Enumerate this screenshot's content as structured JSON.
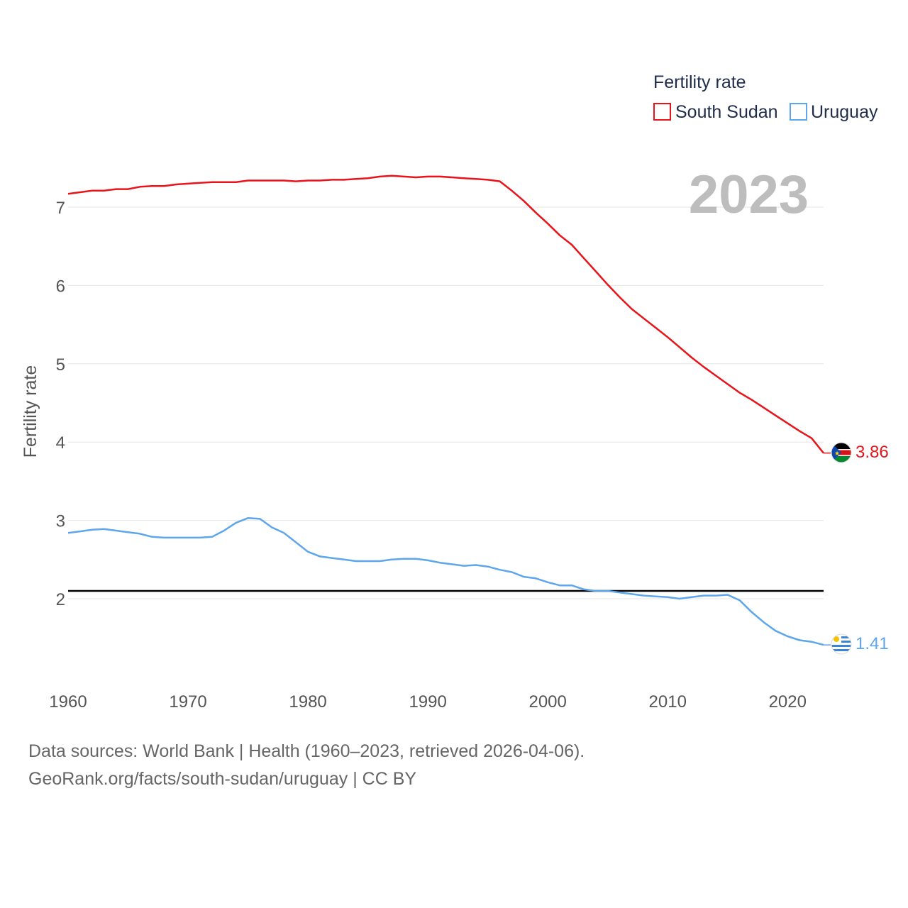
{
  "chart_data": {
    "type": "line",
    "title": "",
    "legend_title": "Fertility rate",
    "ylabel": "Fertility rate",
    "xlabel": "",
    "year_label": "2023",
    "xlim": [
      1960,
      2023
    ],
    "ylim": [
      1.0,
      7.6
    ],
    "x_ticks": [
      1960,
      1970,
      1980,
      1990,
      2000,
      2010,
      2020
    ],
    "y_ticks": [
      2,
      3,
      4,
      5,
      6,
      7
    ],
    "reference_line": {
      "y": 2.1,
      "color": "#000000"
    },
    "legend_position": "top-right",
    "x": [
      1960,
      1961,
      1962,
      1963,
      1964,
      1965,
      1966,
      1967,
      1968,
      1969,
      1970,
      1971,
      1972,
      1973,
      1974,
      1975,
      1976,
      1977,
      1978,
      1979,
      1980,
      1981,
      1982,
      1983,
      1984,
      1985,
      1986,
      1987,
      1988,
      1989,
      1990,
      1991,
      1992,
      1993,
      1994,
      1995,
      1996,
      1997,
      1998,
      1999,
      2000,
      2001,
      2002,
      2003,
      2004,
      2005,
      2006,
      2007,
      2008,
      2009,
      2010,
      2011,
      2012,
      2013,
      2014,
      2015,
      2016,
      2017,
      2018,
      2019,
      2020,
      2021,
      2022,
      2023
    ],
    "series": [
      {
        "name": "South Sudan",
        "color": "#e8141a",
        "end_label": "3.86",
        "values": [
          7.17,
          7.19,
          7.21,
          7.21,
          7.23,
          7.23,
          7.26,
          7.27,
          7.27,
          7.29,
          7.3,
          7.31,
          7.32,
          7.32,
          7.32,
          7.34,
          7.34,
          7.34,
          7.34,
          7.33,
          7.34,
          7.34,
          7.35,
          7.35,
          7.36,
          7.37,
          7.39,
          7.4,
          7.39,
          7.38,
          7.39,
          7.39,
          7.38,
          7.37,
          7.36,
          7.35,
          7.33,
          7.21,
          7.08,
          6.93,
          6.79,
          6.64,
          6.52,
          6.35,
          6.18,
          6.01,
          5.85,
          5.7,
          5.58,
          5.46,
          5.34,
          5.21,
          5.08,
          4.96,
          4.85,
          4.74,
          4.63,
          4.54,
          4.44,
          4.34,
          4.24,
          4.14,
          4.05,
          3.86
        ]
      },
      {
        "name": "Uruguay",
        "color": "#5ea6ec",
        "end_label": "1.41",
        "values": [
          2.84,
          2.86,
          2.88,
          2.89,
          2.87,
          2.85,
          2.83,
          2.79,
          2.78,
          2.78,
          2.78,
          2.78,
          2.79,
          2.87,
          2.97,
          3.03,
          3.02,
          2.91,
          2.84,
          2.72,
          2.6,
          2.54,
          2.52,
          2.5,
          2.48,
          2.48,
          2.48,
          2.5,
          2.51,
          2.51,
          2.49,
          2.46,
          2.44,
          2.42,
          2.43,
          2.41,
          2.37,
          2.34,
          2.28,
          2.26,
          2.21,
          2.17,
          2.17,
          2.12,
          2.1,
          2.1,
          2.08,
          2.06,
          2.04,
          2.03,
          2.02,
          2.0,
          2.02,
          2.04,
          2.04,
          2.05,
          1.98,
          1.83,
          1.7,
          1.59,
          1.52,
          1.47,
          1.45,
          1.41
        ]
      }
    ]
  },
  "footer": {
    "line1": "Data sources: World Bank | Health (1960–2023, retrieved 2026-04-06).",
    "line2": "GeoRank.org/facts/south-sudan/uruguay | CC BY"
  }
}
